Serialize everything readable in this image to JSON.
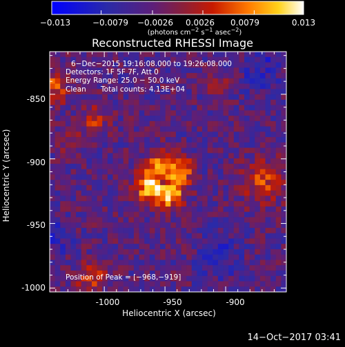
{
  "chart_data": {
    "type": "heatmap",
    "title": "Reconstructed RHESSI Image",
    "xlabel": "Heliocentric X (arcsec)",
    "ylabel": "Heliocentric Y (arcsec)",
    "xlim": [
      -1045,
      -850
    ],
    "ylim": [
      -1003,
      -817
    ],
    "xticks": [
      -1000,
      -950,
      -900
    ],
    "yticks": [
      -850,
      -900,
      -950,
      -1000
    ],
    "colorbar": {
      "range": [
        -0.013,
        0.013
      ],
      "ticks": [
        "−0.013",
        "−0.0079",
        "−0.0026",
        "0.0026",
        "0.0079",
        "0.013"
      ],
      "label_prefix": "(photons cm",
      "label_exp1": "−2",
      "label_mid1": " s",
      "label_exp2": "−1",
      "label_mid2": " asec",
      "label_exp3": "−2",
      "label_suffix": ")"
    },
    "annotations": {
      "line1": "6−Dec−2015 19:16:08.000 to 19:26:08.000",
      "line2": "Detectors: 1F 5F 7F, Att 0",
      "line3": "Energy Range: 25.0 − 50.0 keV",
      "line4_a": "Clean",
      "line4_b": "Total counts: 4.13E+04",
      "peak": "Position of Peak = [−968,−919]"
    },
    "peak_position": [
      -968,
      -919
    ],
    "sources": [
      {
        "x": -963,
        "y": -921,
        "r": 9,
        "amp": 1.0,
        "kind": "blob"
      },
      {
        "x": -952,
        "y": -903,
        "r": 9,
        "amp": 0.65,
        "kind": "blob"
      },
      {
        "x": -942,
        "y": -918,
        "r": 8,
        "amp": 0.7,
        "kind": "blob"
      },
      {
        "x": -948,
        "y": -929,
        "r": 8,
        "amp": 0.8,
        "kind": "blob"
      },
      {
        "x": -935,
        "y": -907,
        "r": 6,
        "amp": 0.55,
        "kind": "blob"
      },
      {
        "x": -1042,
        "y": -845,
        "r": 9,
        "amp": 0.6,
        "kind": "blob"
      },
      {
        "x": -1008,
        "y": -870,
        "r": 8,
        "amp": 0.45,
        "kind": "blob"
      },
      {
        "x": -1010,
        "y": -992,
        "r": 9,
        "amp": 0.55,
        "kind": "blob"
      },
      {
        "x": -870,
        "y": -918,
        "r": 12,
        "amp": 0.55,
        "kind": "blob"
      },
      {
        "x": -905,
        "y": -842,
        "r": 6,
        "amp": 0.35,
        "kind": "blob"
      },
      {
        "x": -1030,
        "y": -885,
        "r": 7,
        "amp": 0.3,
        "kind": "blob"
      },
      {
        "x": -950,
        "y": -918,
        "r": 5,
        "amp": -0.75,
        "kind": "hole"
      },
      {
        "x": -1040,
        "y": -960,
        "r": 9,
        "amp": -0.3,
        "kind": "hole"
      },
      {
        "x": -905,
        "y": -975,
        "r": 11,
        "amp": -0.35,
        "kind": "hole"
      },
      {
        "x": -870,
        "y": -830,
        "r": 12,
        "amp": -0.3,
        "kind": "hole"
      }
    ],
    "footer_timestamp": "14−Oct−2017 03:41"
  }
}
